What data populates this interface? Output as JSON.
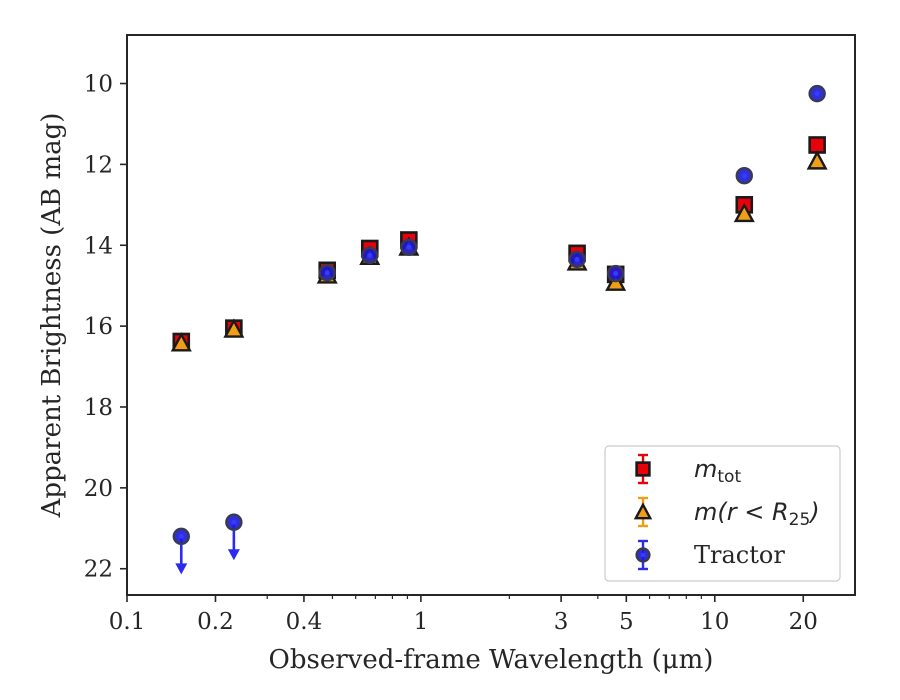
{
  "chart_data": {
    "type": "scatter",
    "xlabel": "Observed-frame Wavelength (μm)",
    "ylabel": "Apparent Brightness (AB mag)",
    "x_scale": "log",
    "xlim": [
      0.1,
      30
    ],
    "ylim": [
      22.65,
      8.8
    ],
    "y_inverted": true,
    "x_ticks": [
      0.1,
      0.2,
      0.4,
      1,
      3,
      5,
      10,
      20
    ],
    "x_tick_labels": [
      "0.1",
      "0.2",
      "0.4",
      "1",
      "3",
      "5",
      "10",
      "20"
    ],
    "y_ticks": [
      10,
      12,
      14,
      16,
      18,
      20,
      22
    ],
    "y_tick_labels": [
      "10",
      "12",
      "14",
      "16",
      "18",
      "20",
      "22"
    ],
    "grid": false,
    "legend_position": "bottom-right",
    "series": [
      {
        "name": "m_tot",
        "legend_main": "m",
        "legend_sub": "tot",
        "marker": "square",
        "color": "#e8000b",
        "points": [
          {
            "x": 0.153,
            "y": 16.38
          },
          {
            "x": 0.231,
            "y": 16.05
          },
          {
            "x": 0.48,
            "y": 14.62
          },
          {
            "x": 0.67,
            "y": 14.08
          },
          {
            "x": 0.91,
            "y": 13.87
          },
          {
            "x": 3.4,
            "y": 14.2
          },
          {
            "x": 4.6,
            "y": 14.72
          },
          {
            "x": 12.6,
            "y": 13.0
          },
          {
            "x": 22.3,
            "y": 11.52
          }
        ]
      },
      {
        "name": "m(r < R25)",
        "legend_main": "m(r < R",
        "legend_sub": "25",
        "legend_tail": ")",
        "marker": "triangle",
        "color": "#f09e17",
        "points": [
          {
            "x": 0.153,
            "y": 16.42
          },
          {
            "x": 0.231,
            "y": 16.08
          },
          {
            "x": 0.48,
            "y": 14.74
          },
          {
            "x": 0.67,
            "y": 14.28
          },
          {
            "x": 0.91,
            "y": 14.05
          },
          {
            "x": 3.4,
            "y": 14.42
          },
          {
            "x": 4.6,
            "y": 14.92
          },
          {
            "x": 12.6,
            "y": 13.22
          },
          {
            "x": 22.3,
            "y": 11.92
          }
        ]
      },
      {
        "name": "Tractor",
        "marker": "circle",
        "color": "#1a1ad6",
        "points": [
          {
            "x": 0.153,
            "y": 21.2,
            "upper_limit": true
          },
          {
            "x": 0.231,
            "y": 20.85,
            "upper_limit": true
          },
          {
            "x": 0.48,
            "y": 14.68
          },
          {
            "x": 0.67,
            "y": 14.25
          },
          {
            "x": 0.91,
            "y": 14.05
          },
          {
            "x": 3.4,
            "y": 14.35
          },
          {
            "x": 4.6,
            "y": 14.7
          },
          {
            "x": 12.6,
            "y": 12.28
          },
          {
            "x": 22.3,
            "y": 10.25
          }
        ]
      }
    ]
  }
}
